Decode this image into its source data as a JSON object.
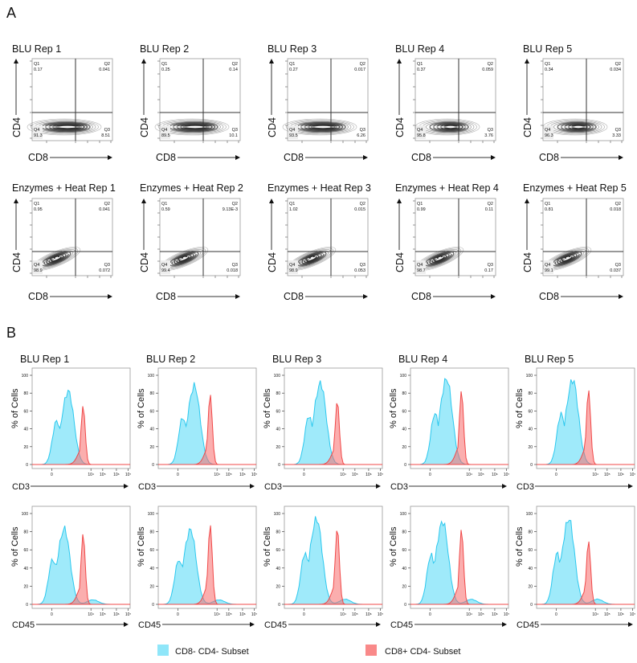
{
  "panel_a": {
    "label": "A",
    "x_axis_label": "CD8",
    "y_axis_label": "CD4",
    "quadrant_labels": [
      "Q1",
      "Q2",
      "Q3",
      "Q4"
    ]
  },
  "panel_b": {
    "label": "B",
    "y_axis_label": "% of Cells",
    "row_markers": [
      "CD3",
      "CD45"
    ]
  },
  "legend": {
    "items": [
      {
        "label": "CD8- CD4- Subset",
        "color": "#5fdcf6"
      },
      {
        "label": "CD8+ CD4- Subset",
        "color": "#f76b6b"
      }
    ]
  },
  "chart_data": [
    {
      "type": "scatter",
      "subtype": "flow-cytometry-contour-quadrant",
      "xlabel": "CD8",
      "ylabel": "CD4",
      "scale": "biexponential",
      "rows": [
        {
          "panels": [
            {
              "title": "BLU Rep 1",
              "Q1": "0.17",
              "Q2": "0.041",
              "Q3": "8.51",
              "Q4": "91.3"
            },
            {
              "title": "BLU Rep 2",
              "Q1": "0.25",
              "Q2": "0.14",
              "Q3": "10.1",
              "Q4": "89.5"
            },
            {
              "title": "BLU Rep 3",
              "Q1": "0.27",
              "Q2": "0.017",
              "Q3": "6.26",
              "Q4": "93.5"
            },
            {
              "title": "BLU Rep 4",
              "Q1": "0.37",
              "Q2": "0.059",
              "Q3": "3.76",
              "Q4": "95.8"
            },
            {
              "title": "BLU Rep 5",
              "Q1": "0.34",
              "Q2": "0.034",
              "Q3": "3.33",
              "Q4": "96.3"
            }
          ]
        },
        {
          "panels": [
            {
              "title": "Enzymes + Heat Rep 1",
              "Q1": "0.95",
              "Q2": "0.041",
              "Q3": "0.072",
              "Q4": "98.9"
            },
            {
              "title": "Enzymes + Heat Rep 2",
              "Q1": "0.59",
              "Q2": "9.13E-3",
              "Q3": "0.018",
              "Q4": "99.4"
            },
            {
              "title": "Enzymes + Heat Rep 3",
              "Q1": "1.02",
              "Q2": "0.015",
              "Q3": "0.053",
              "Q4": "98.9"
            },
            {
              "title": "Enzymes + Heat Rep 4",
              "Q1": "0.99",
              "Q2": "0.11",
              "Q3": "0.17",
              "Q4": "98.7"
            },
            {
              "title": "Enzymes + Heat Rep 5",
              "Q1": "0.81",
              "Q2": "0.018",
              "Q3": "0.037",
              "Q4": "99.1"
            }
          ]
        }
      ]
    },
    {
      "type": "area",
      "subtype": "histogram-overlay",
      "ylabel": "% of Cells",
      "ylim": [
        0,
        100
      ],
      "yticks": [
        "0",
        "20",
        "40",
        "60",
        "80",
        "100"
      ],
      "xticks": [
        "0",
        "10⁴",
        "10⁵",
        "10⁶",
        "10⁷"
      ],
      "series_names": [
        "CD8- CD4- Subset",
        "CD8+ CD4- Subset"
      ],
      "series_colors": [
        "#5fdcf6",
        "#f76b6b"
      ],
      "rows": [
        {
          "xlabel": "CD3",
          "panels": [
            {
              "title": "BLU Rep 1",
              "peaks": [
                82,
                66
              ]
            },
            {
              "title": "BLU Rep 2",
              "peaks": [
                88,
                79
              ]
            },
            {
              "title": "BLU Rep 3",
              "peaks": [
                91,
                72
              ]
            },
            {
              "title": "BLU Rep 4",
              "peaks": [
                96,
                83
              ]
            },
            {
              "title": "BLU Rep 5",
              "peaks": [
                95,
                84
              ]
            }
          ]
        },
        {
          "xlabel": "CD45",
          "panels": [
            {
              "title": "",
              "peaks": [
                83,
                78
              ]
            },
            {
              "title": "",
              "peaks": [
                82,
                88
              ]
            },
            {
              "title": "",
              "peaks": [
                94,
                85
              ]
            },
            {
              "title": "",
              "peaks": [
                91,
                83
              ]
            },
            {
              "title": "",
              "peaks": [
                94,
                70
              ]
            }
          ]
        }
      ]
    }
  ]
}
